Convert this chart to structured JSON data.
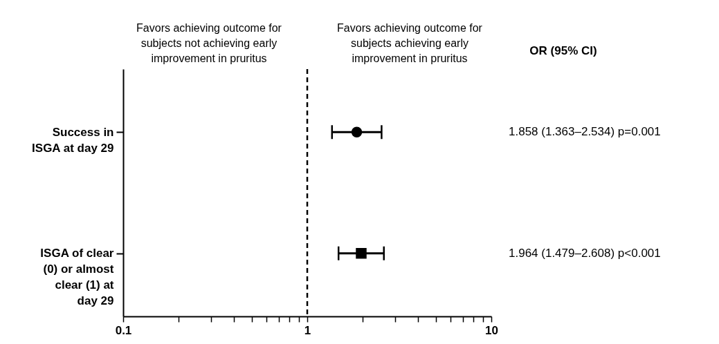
{
  "chart_data": {
    "type": "scatter",
    "orientation": "horizontal",
    "categories": [
      "Success in ISGA at day 29",
      "ISGA of clear (0) or almost clear (1) at day 29"
    ],
    "series": [
      {
        "color": "#000000",
        "marker": "circle",
        "values": [
          1.858,
          null
        ],
        "errors": [
          [
            1.363,
            2.534
          ],
          null
        ]
      },
      {
        "color": "#000000",
        "marker": "square",
        "values": [
          null,
          1.964
        ],
        "errors": [
          null,
          [
            1.479,
            2.608
          ]
        ]
      }
    ],
    "log": "x",
    "xlim": [
      0.1,
      10
    ],
    "xticks": [
      0.1,
      {
        "value": 0.2,
        "label": null
      },
      {
        "value": 0.3,
        "label": null
      },
      {
        "value": 0.4,
        "label": null
      },
      {
        "value": 0.5,
        "label": null
      },
      {
        "value": 0.6,
        "label": null
      },
      {
        "value": 0.7,
        "label": null
      },
      {
        "value": 0.8,
        "label": null
      },
      {
        "value": 0.9,
        "label": null
      },
      1,
      {
        "value": 2,
        "label": null
      },
      {
        "value": 3,
        "label": null
      },
      {
        "value": 4,
        "label": null
      },
      {
        "value": 5,
        "label": null
      },
      {
        "value": 6,
        "label": null
      },
      {
        "value": 7,
        "label": null
      },
      {
        "value": 8,
        "label": null
      },
      {
        "value": 9,
        "label": null
      },
      10
    ],
    "ref_lines": [
      {
        "axis": "x",
        "value": 1,
        "line_style": "dashed",
        "color": "#000000"
      }
    ],
    "annotations": [
      "Favors achieving outcome for\nsubjects not achieving early\nimprovement in pruritus",
      "Favors achieving outcome for\nsubjects achieving early\nimprovement in pruritus",
      "OR (95% CI)",
      "1.858 (1.363–2.534)  p=0.001",
      "1.964 (1.479–2.608)  p<0.001"
    ],
    "grid": false,
    "legend": false
  }
}
